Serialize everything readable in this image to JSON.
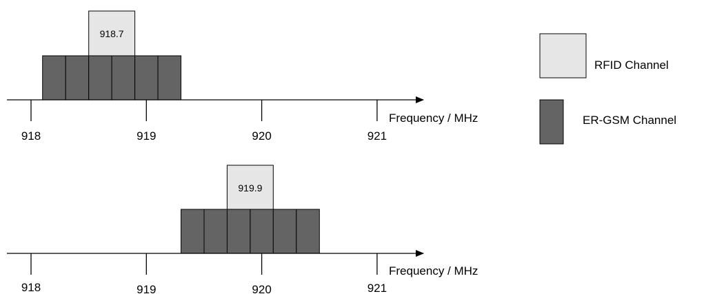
{
  "colors": {
    "rfid": "#e6e6e6",
    "gsm": "#646464",
    "stroke": "#000000"
  },
  "legend": {
    "rfid_label": "RFID Channel",
    "gsm_label": "ER-GSM Channel"
  },
  "panels": [
    {
      "axis_label": "Frequency / MHz",
      "ticks": [
        "918",
        "919",
        "920",
        "921"
      ],
      "rfid_channel": {
        "label": "918.7",
        "start_mhz": 918.5,
        "end_mhz": 918.9
      },
      "gsm_channels": {
        "start_mhz": 918.1,
        "count": 6,
        "width_mhz": 0.2
      }
    },
    {
      "axis_label": "Frequency / MHz",
      "ticks": [
        "918",
        "919",
        "920",
        "921"
      ],
      "rfid_channel": {
        "label": "919.9",
        "start_mhz": 919.7,
        "end_mhz": 920.1
      },
      "gsm_channels": {
        "start_mhz": 919.3,
        "count": 6,
        "width_mhz": 0.2
      }
    }
  ]
}
